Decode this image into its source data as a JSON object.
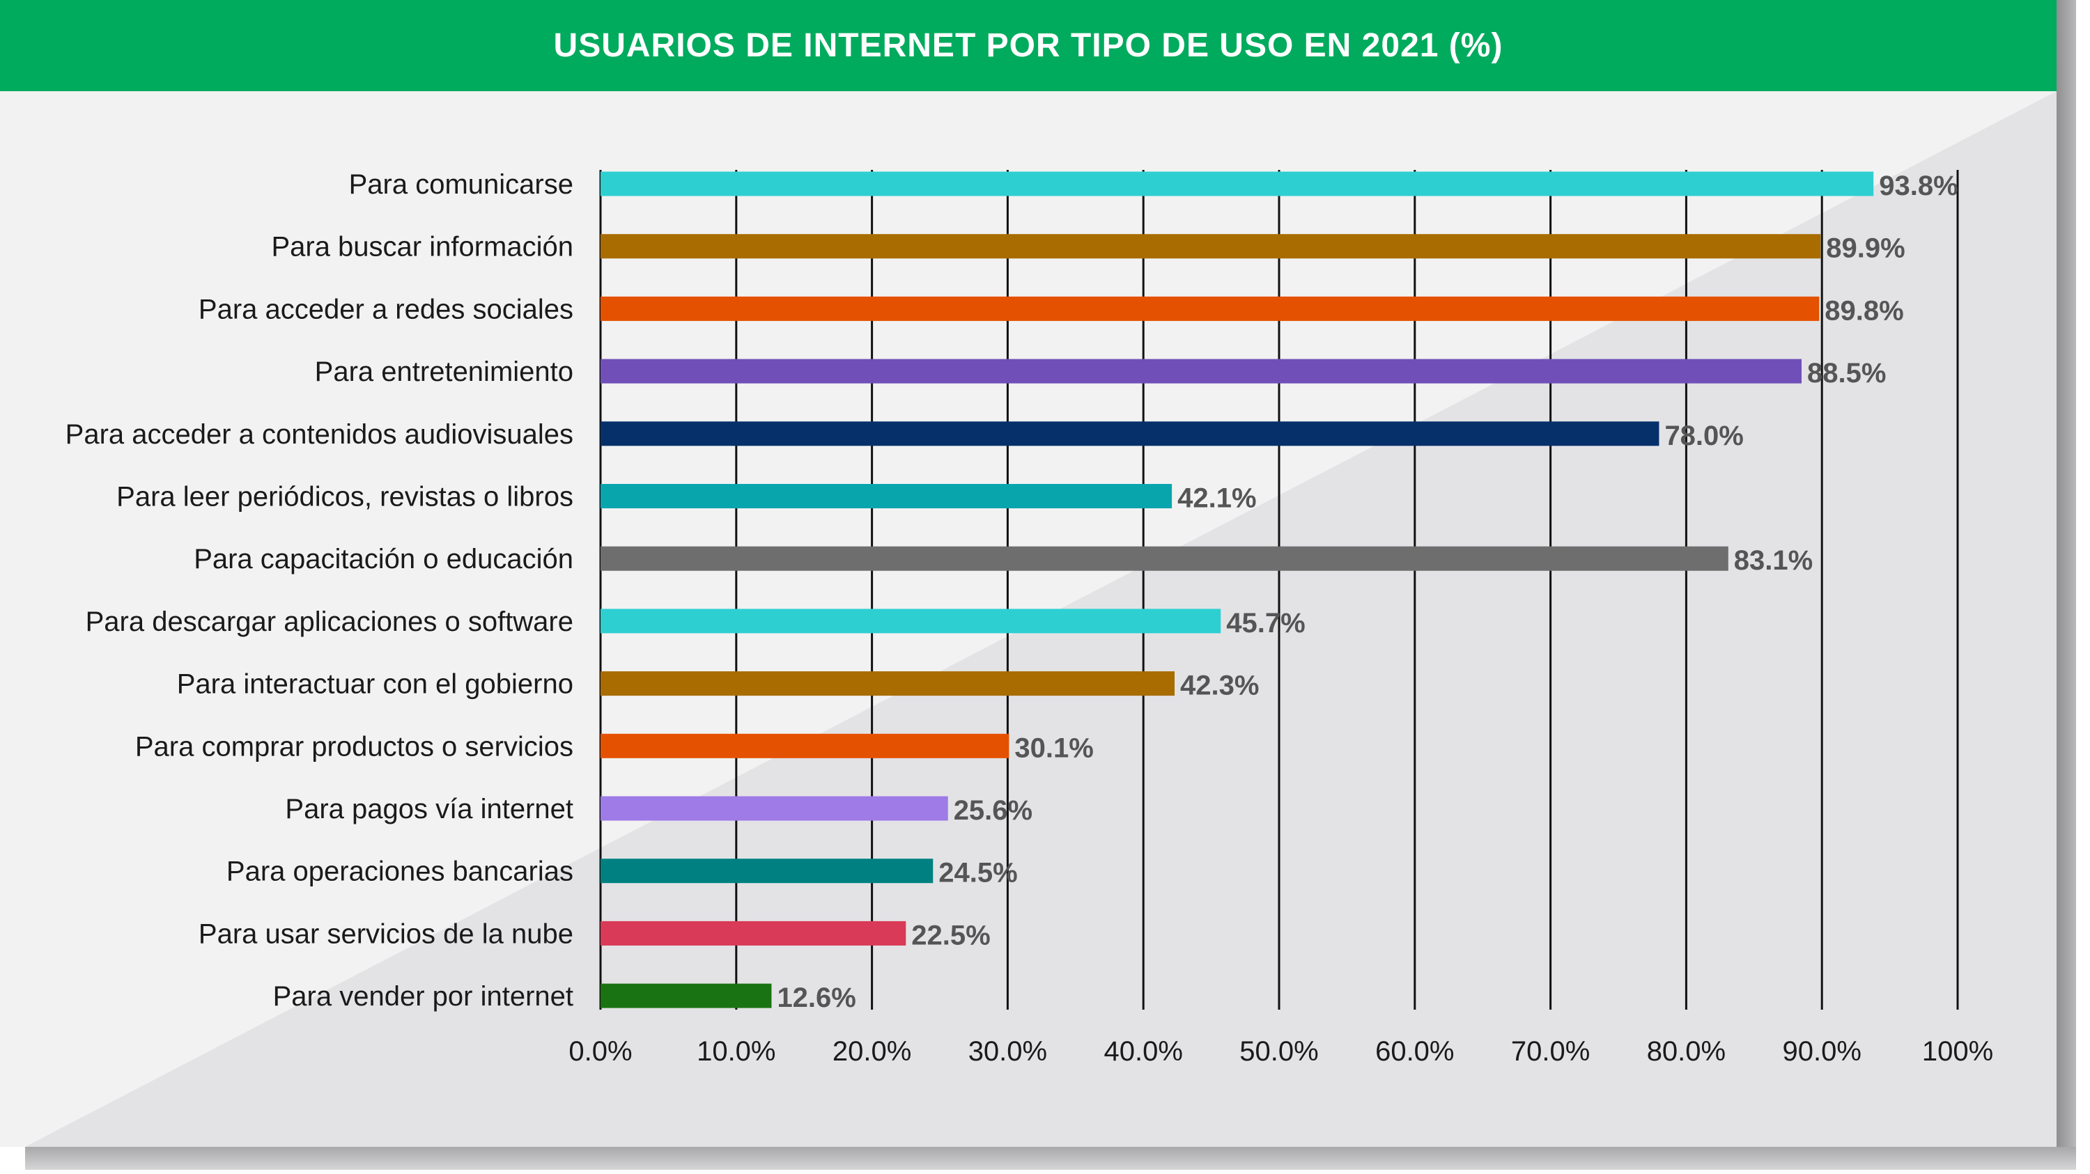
{
  "title": "USUARIOS DE INTERNET POR TIPO DE USO EN 2021 (%)",
  "chart_data": {
    "type": "bar",
    "orientation": "horizontal",
    "title": "USUARIOS DE INTERNET POR TIPO DE USO EN 2021 (%)",
    "categories": [
      "Para comunicarse",
      "Para buscar información",
      "Para acceder a redes sociales",
      "Para entretenimiento",
      "Para acceder a contenidos audiovisuales",
      "Para leer periódicos, revistas o libros",
      "Para capacitación o educación",
      "Para descargar aplicaciones o software",
      "Para interactuar con el gobierno",
      "Para comprar productos o servicios",
      "Para pagos vía internet",
      "Para operaciones bancarias",
      "Para usar servicios de la nube",
      "Para vender por internet"
    ],
    "values": [
      93.8,
      89.9,
      89.8,
      88.5,
      78.0,
      42.1,
      83.1,
      45.7,
      42.3,
      30.1,
      25.6,
      24.5,
      22.5,
      12.6
    ],
    "value_labels": [
      "93.8%",
      "89.9%",
      "89.8%",
      "88.5%",
      "78.0%",
      "42.1%",
      "83.1%",
      "45.7%",
      "42.3%",
      "30.1%",
      "25.6%",
      "24.5%",
      "22.5%",
      "12.6%"
    ],
    "colors": [
      "#2ecfd1",
      "#a86c00",
      "#e45100",
      "#7050b8",
      "#05306a",
      "#08a5ad",
      "#6e6e6e",
      "#2ecfd1",
      "#a86c00",
      "#e45100",
      "#9e7be6",
      "#008080",
      "#d83a57",
      "#1a7312"
    ],
    "xlim": [
      0,
      100
    ],
    "xticks": [
      0,
      10,
      20,
      30,
      40,
      50,
      60,
      70,
      80,
      90,
      100
    ],
    "xtick_labels": [
      "0.0%",
      "10.0%",
      "20.0%",
      "30.0%",
      "40.0%",
      "50.0%",
      "60.0%",
      "70.0%",
      "80.0%",
      "90.0%",
      "100%"
    ],
    "grid": "vertical",
    "legend": "none"
  }
}
